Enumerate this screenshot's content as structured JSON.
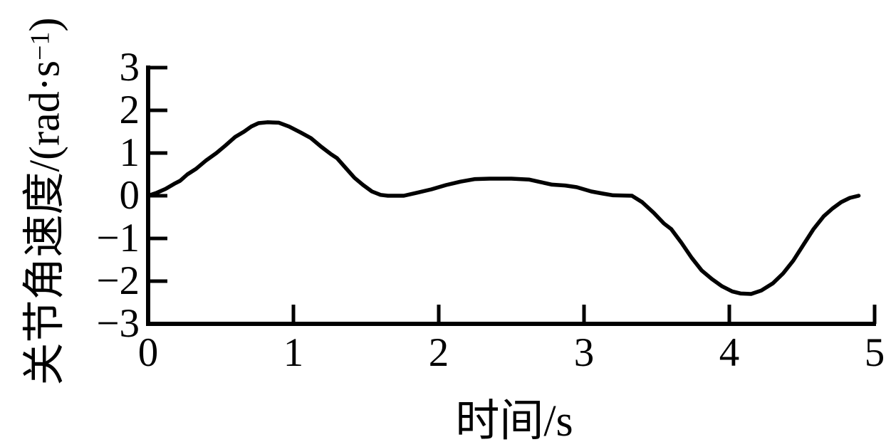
{
  "chart_data": {
    "type": "line",
    "title": "",
    "xlabel": "时间/s",
    "ylabel": "关节角速度/(rad·s−1)",
    "ylabel_parts": {
      "prefix": "关节角速度/(rad·s",
      "sup": "−1",
      "suffix": ")"
    },
    "xlim": [
      0,
      5
    ],
    "ylim": [
      -3,
      3
    ],
    "x_ticks": [
      0,
      1,
      2,
      3,
      4,
      5
    ],
    "x_tick_labels": [
      "0",
      "1",
      "2",
      "3",
      "4",
      "5"
    ],
    "y_ticks": [
      3,
      2,
      1,
      0,
      -1,
      -2,
      -3
    ],
    "y_tick_labels": [
      "3",
      "2",
      "1",
      "0",
      "−1",
      "−2",
      "−3"
    ],
    "grid": false,
    "legend": "none",
    "line_color": "#000000",
    "axis_color": "#000000",
    "background": "#ffffff",
    "series": [
      {
        "name": "关节角速度",
        "points": [
          [
            0.0,
            0.0
          ],
          [
            0.06,
            0.07
          ],
          [
            0.12,
            0.16
          ],
          [
            0.18,
            0.28
          ],
          [
            0.22,
            0.35
          ],
          [
            0.27,
            0.5
          ],
          [
            0.33,
            0.63
          ],
          [
            0.4,
            0.83
          ],
          [
            0.47,
            1.0
          ],
          [
            0.53,
            1.17
          ],
          [
            0.6,
            1.38
          ],
          [
            0.66,
            1.5
          ],
          [
            0.71,
            1.62
          ],
          [
            0.76,
            1.7
          ],
          [
            0.82,
            1.72
          ],
          [
            0.9,
            1.71
          ],
          [
            0.97,
            1.62
          ],
          [
            1.05,
            1.48
          ],
          [
            1.12,
            1.35
          ],
          [
            1.19,
            1.15
          ],
          [
            1.26,
            0.97
          ],
          [
            1.3,
            0.88
          ],
          [
            1.36,
            0.65
          ],
          [
            1.42,
            0.42
          ],
          [
            1.48,
            0.25
          ],
          [
            1.54,
            0.1
          ],
          [
            1.6,
            0.02
          ],
          [
            1.65,
            0.0
          ],
          [
            1.76,
            0.0
          ],
          [
            1.85,
            0.07
          ],
          [
            1.95,
            0.15
          ],
          [
            2.05,
            0.25
          ],
          [
            2.15,
            0.33
          ],
          [
            2.25,
            0.39
          ],
          [
            2.35,
            0.4
          ],
          [
            2.5,
            0.4
          ],
          [
            2.62,
            0.38
          ],
          [
            2.7,
            0.32
          ],
          [
            2.78,
            0.26
          ],
          [
            2.87,
            0.24
          ],
          [
            2.95,
            0.2
          ],
          [
            3.05,
            0.1
          ],
          [
            3.13,
            0.05
          ],
          [
            3.2,
            0.01
          ],
          [
            3.33,
            0.0
          ],
          [
            3.4,
            -0.15
          ],
          [
            3.48,
            -0.4
          ],
          [
            3.55,
            -0.65
          ],
          [
            3.6,
            -0.78
          ],
          [
            3.67,
            -1.1
          ],
          [
            3.74,
            -1.45
          ],
          [
            3.81,
            -1.75
          ],
          [
            3.88,
            -1.95
          ],
          [
            3.95,
            -2.12
          ],
          [
            4.02,
            -2.24
          ],
          [
            4.08,
            -2.29
          ],
          [
            4.15,
            -2.3
          ],
          [
            4.22,
            -2.22
          ],
          [
            4.3,
            -2.05
          ],
          [
            4.37,
            -1.82
          ],
          [
            4.44,
            -1.52
          ],
          [
            4.51,
            -1.15
          ],
          [
            4.58,
            -0.78
          ],
          [
            4.65,
            -0.48
          ],
          [
            4.71,
            -0.3
          ],
          [
            4.77,
            -0.15
          ],
          [
            4.83,
            -0.05
          ],
          [
            4.89,
            0.0
          ]
        ]
      }
    ]
  }
}
